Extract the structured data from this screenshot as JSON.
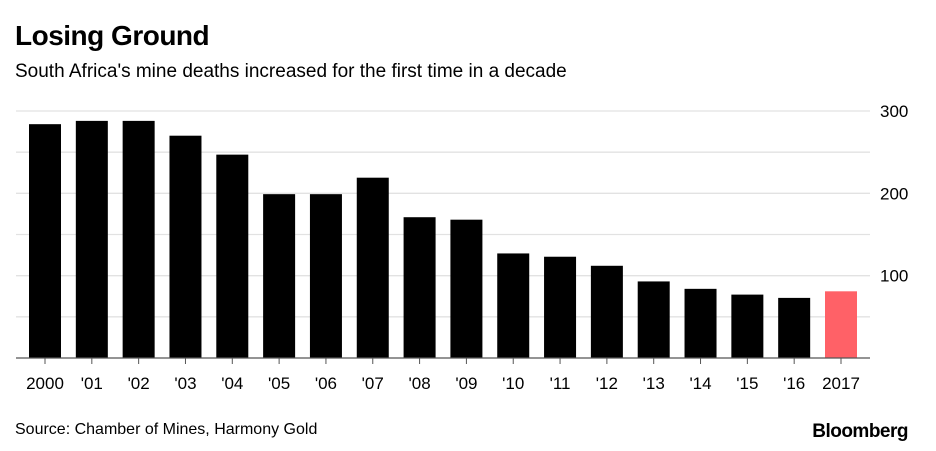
{
  "header": {
    "title": "Losing Ground",
    "subtitle": "South Africa's mine deaths increased for the first time in a decade"
  },
  "footer": {
    "source": "Source: Chamber of Mines, Harmony Gold",
    "logo": "Bloomberg"
  },
  "chart_data": {
    "type": "bar",
    "title": "Losing Ground",
    "subtitle": "South Africa's mine deaths increased for the first time in a decade",
    "categories": [
      "2000",
      "'01",
      "'02",
      "'03",
      "'04",
      "'05",
      "'06",
      "'07",
      "'08",
      "'09",
      "'10",
      "'11",
      "'12",
      "'13",
      "'14",
      "'15",
      "'16",
      "2017"
    ],
    "values": [
      284,
      288,
      288,
      270,
      247,
      199,
      199,
      219,
      171,
      168,
      127,
      123,
      112,
      93,
      84,
      77,
      73,
      81
    ],
    "colors": {
      "default": "#000000",
      "highlight": "#ff6167",
      "grid": "#e2e2e2",
      "axis": "#555555"
    },
    "highlight_index": 17,
    "ylim": [
      0,
      300
    ],
    "yticks": [
      100,
      200,
      300
    ],
    "ytick_labels": [
      "100",
      "200",
      "300"
    ],
    "gridlines_every": 50,
    "grid": true,
    "y_axis_position": "right",
    "xlabel": "",
    "ylabel": ""
  }
}
